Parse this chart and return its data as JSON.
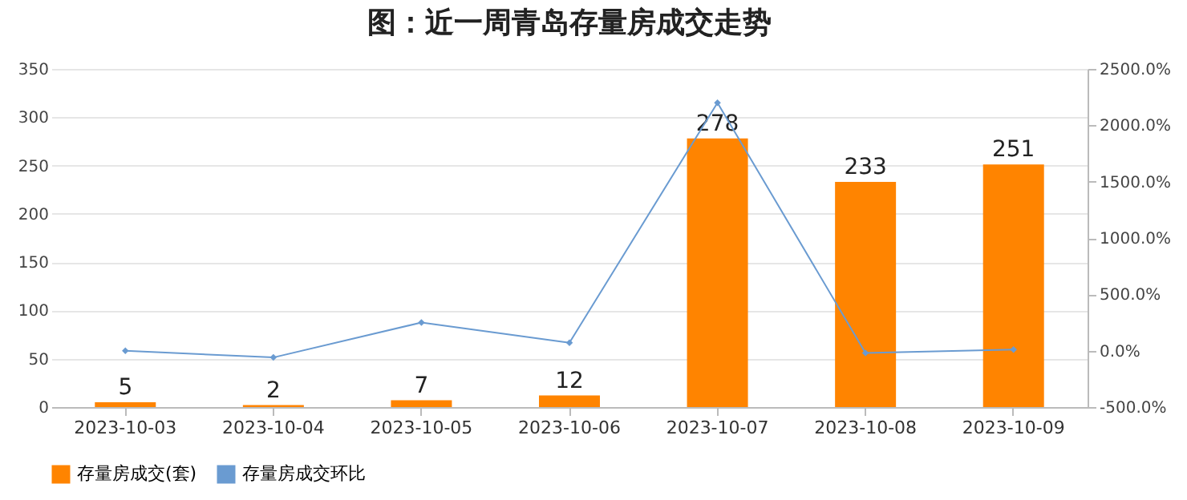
{
  "chart_data": {
    "type": "bar",
    "title": "图：近一周青岛存量房成交走势",
    "categories": [
      "2023-10-03",
      "2023-10-04",
      "2023-10-05",
      "2023-10-06",
      "2023-10-07",
      "2023-10-08",
      "2023-10-09"
    ],
    "series": [
      {
        "name": "存量房成交(套)",
        "color": "#ff8400",
        "values": [
          5,
          2,
          7,
          12,
          278,
          233,
          251
        ],
        "value_labels": [
          "5",
          "2",
          "7",
          "12",
          "278",
          "233",
          "251"
        ]
      },
      {
        "name": "存量房成交环比",
        "type": "line",
        "axis": "y2",
        "color": "#6a9bd1",
        "marker": "diamond",
        "values": [
          0,
          -60,
          250,
          70,
          2200,
          -20,
          10
        ]
      }
    ],
    "ylim": [
      0,
      350
    ],
    "yticks": [
      0,
      50,
      100,
      150,
      200,
      250,
      300,
      350
    ],
    "y2lim": [
      -500,
      2500
    ],
    "y2ticks": [
      {
        "value": -500,
        "label": "-500.0%"
      },
      {
        "value": 0,
        "label": "0.0%"
      },
      {
        "value": 500,
        "label": "500.0%"
      },
      {
        "value": 1000,
        "label": "1000.0%"
      },
      {
        "value": 1500,
        "label": "1500.0%"
      },
      {
        "value": 2000,
        "label": "2000.0%"
      },
      {
        "value": 2500,
        "label": "2500.0%"
      }
    ],
    "grid": "y",
    "legend": "bottom"
  }
}
